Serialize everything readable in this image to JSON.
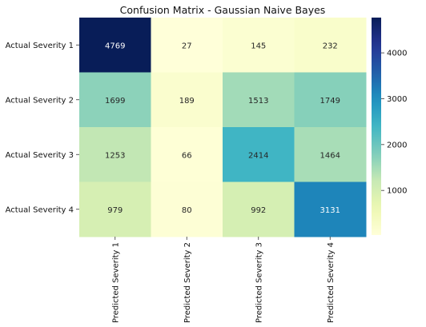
{
  "chart_data": {
    "type": "heatmap",
    "title": "Confusion Matrix - Gaussian Naive Bayes",
    "row_labels": [
      "Actual Severity 1",
      "Actual Severity 2",
      "Actual Severity 3",
      "Actual Severity 4"
    ],
    "col_labels": [
      "Predicted Severity 1",
      "Predicted Severity 2",
      "Predicted Severity 3",
      "Predicted Severity 4"
    ],
    "values": [
      [
        4769,
        27,
        145,
        232
      ],
      [
        1699,
        189,
        1513,
        1749
      ],
      [
        1253,
        66,
        2414,
        1464
      ],
      [
        979,
        80,
        992,
        3131
      ]
    ],
    "colormap": "YlGnBu",
    "vmin": 27,
    "vmax": 4769,
    "colorbar_ticks": [
      1000,
      2000,
      3000,
      4000
    ],
    "annotate": true
  }
}
